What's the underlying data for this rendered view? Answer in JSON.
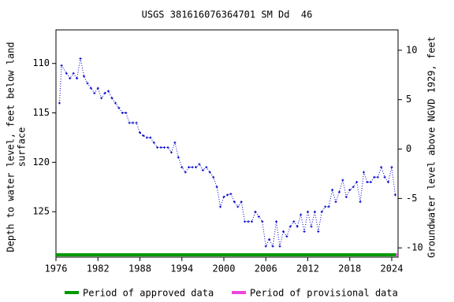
{
  "chart_data": {
    "type": "scatter-line",
    "title": "USGS 381616076364701 SM Dd  46",
    "ylabel": [
      "Depth to water level, feet below land",
      "surface"
    ],
    "y2label": "Groundwater level above NGVD 1929, feet",
    "xlim": [
      1976,
      2024.9
    ],
    "xticks": [
      1976,
      1982,
      1988,
      1994,
      2000,
      2006,
      2012,
      2018,
      2024
    ],
    "ylim": [
      106.6,
      129.6
    ],
    "yticks": [
      110,
      115,
      120,
      125
    ],
    "y2lim": [
      12.06,
      -10.94
    ],
    "y2ticks": [
      10,
      5,
      0,
      -5,
      -10
    ],
    "series": [
      {
        "name": "Depth to water level",
        "color": "#0000cc",
        "x": [
          1976.5,
          1976.8,
          1977.5,
          1978,
          1978.5,
          1979,
          1979.5,
          1980,
          1980.5,
          1981,
          1981.5,
          1982,
          1982.5,
          1983,
          1983.5,
          1984,
          1984.5,
          1985,
          1985.5,
          1986,
          1986.5,
          1987,
          1987.5,
          1988,
          1988.5,
          1989,
          1989.5,
          1990,
          1990.5,
          1991,
          1991.5,
          1992,
          1992.5,
          1993,
          1993.5,
          1994,
          1994.5,
          1995,
          1995.5,
          1996,
          1996.5,
          1997,
          1997.5,
          1998,
          1998.5,
          1999,
          1999.5,
          2000,
          2000.5,
          2001,
          2001.5,
          2002,
          2002.5,
          2003,
          2003.5,
          2004,
          2004.5,
          2005,
          2005.5,
          2006,
          2006.5,
          2007,
          2007.5,
          2008,
          2008.5,
          2009,
          2009.5,
          2010,
          2010.5,
          2011,
          2011.5,
          2012,
          2012.5,
          2013,
          2013.5,
          2014,
          2014.5,
          2015,
          2015.5,
          2016,
          2016.5,
          2017,
          2017.5,
          2018,
          2018.5,
          2019,
          2019.5,
          2020,
          2020.5,
          2021,
          2021.5,
          2022,
          2022.5,
          2023,
          2023.5,
          2024,
          2024.5
        ],
        "values": [
          114,
          110.2,
          111,
          111.5,
          111,
          111.5,
          109.5,
          111.3,
          112,
          112.5,
          113,
          112.5,
          113.5,
          113,
          112.8,
          113.5,
          114,
          114.5,
          115,
          115,
          116,
          116,
          116,
          117,
          117.3,
          117.5,
          117.5,
          118,
          118.5,
          118.5,
          118.5,
          118.5,
          119,
          118,
          119.5,
          120.5,
          121,
          120.5,
          120.5,
          120.5,
          120.2,
          120.8,
          120.5,
          121,
          121.5,
          122.5,
          124.5,
          123.5,
          123.3,
          123.2,
          124,
          124.5,
          124,
          126,
          126,
          126,
          125,
          125.5,
          126,
          128.5,
          127.8,
          128.5,
          126,
          128.5,
          127,
          127.5,
          126.5,
          126,
          126.5,
          125.3,
          127,
          125,
          126.5,
          125,
          127,
          125,
          124.5,
          124.5,
          122.8,
          124,
          123,
          121.8,
          123.5,
          122.8,
          122.5,
          122,
          124,
          121,
          122,
          122,
          121.5,
          121.5,
          120.5,
          121.5,
          122,
          120.5,
          123.3
        ]
      }
    ],
    "periods": [
      {
        "name": "Period of approved data",
        "color": "#009900",
        "x": [
          1976,
          2024.6
        ]
      },
      {
        "name": "Period of provisional data",
        "color": "#ee44dd",
        "x": [
          2024.6,
          2024.9
        ]
      }
    ]
  }
}
